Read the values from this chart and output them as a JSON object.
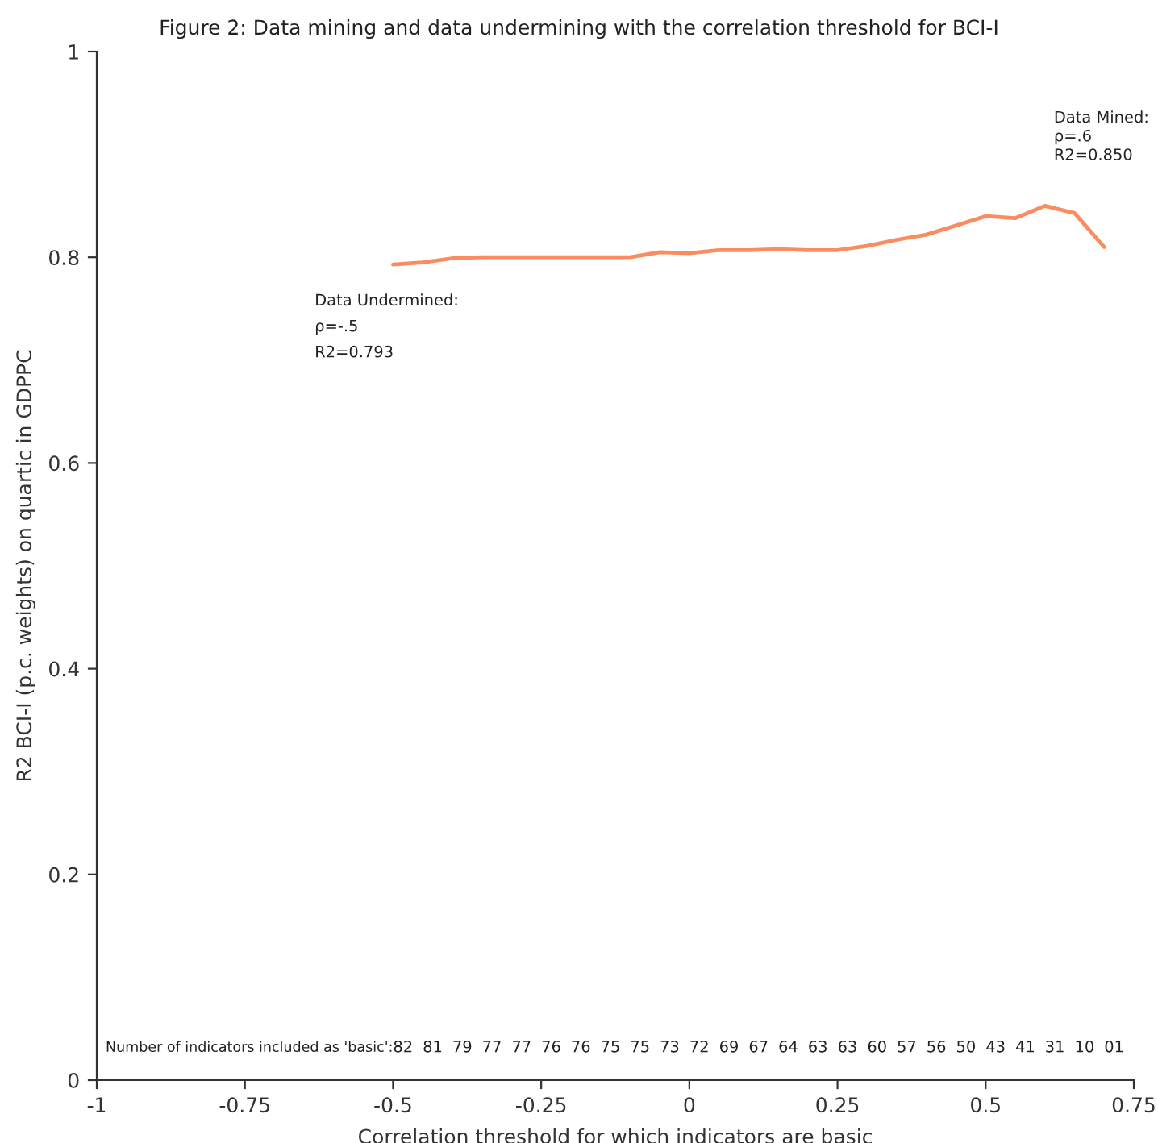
{
  "chart_data": {
    "type": "line",
    "title": "Figure 2: Data mining and data undermining with the correlation threshold for BCI-I",
    "xlabel": "Correlation threshold for which indicators are basic",
    "ylabel": "R2 BCI-I (p.c. weights) on quartic in GDPPC",
    "x": [
      -0.5,
      -0.45,
      -0.4,
      -0.35,
      -0.3,
      -0.25,
      -0.2,
      -0.15,
      -0.1,
      -0.05,
      0,
      0.05,
      0.1,
      0.15,
      0.2,
      0.25,
      0.3,
      0.35,
      0.4,
      0.45,
      0.5,
      0.55,
      0.6,
      0.65,
      0.7
    ],
    "series": [
      {
        "color": "#fa8c5f",
        "values": [
          0.793,
          0.795,
          0.799,
          0.8,
          0.8,
          0.8,
          0.8,
          0.8,
          0.8,
          0.805,
          0.804,
          0.807,
          0.807,
          0.808,
          0.807,
          0.807,
          0.811,
          0.817,
          0.822,
          0.831,
          0.84,
          0.838,
          0.85,
          0.843,
          0.81
        ]
      }
    ],
    "xlim": [
      -1,
      0.75
    ],
    "xticks": [
      -1,
      -0.75,
      -0.5,
      -0.25,
      0,
      0.25,
      0.5,
      0.75
    ],
    "ylim": [
      0,
      1
    ],
    "yticks": [
      0,
      0.2,
      0.4,
      0.6,
      0.8,
      1
    ],
    "line_style": "solid",
    "annotations": [
      {
        "text": "Data Undermined:\nρ=-.5\nR2=0.793",
        "x": -0.5,
        "y": 0.793
      },
      {
        "text": "Data Mined:\nρ=.6\nR2=0.850",
        "x": 0.6,
        "y": 0.85
      },
      "Number of indicators included as 'basic':",
      "82",
      "81",
      "79",
      "77",
      "77",
      "76",
      "76",
      "75",
      "75",
      "73",
      "72",
      "69",
      "67",
      "64",
      "63",
      "63",
      "60",
      "57",
      "56",
      "50",
      "43",
      "41",
      "31",
      "10",
      "01"
    ]
  }
}
